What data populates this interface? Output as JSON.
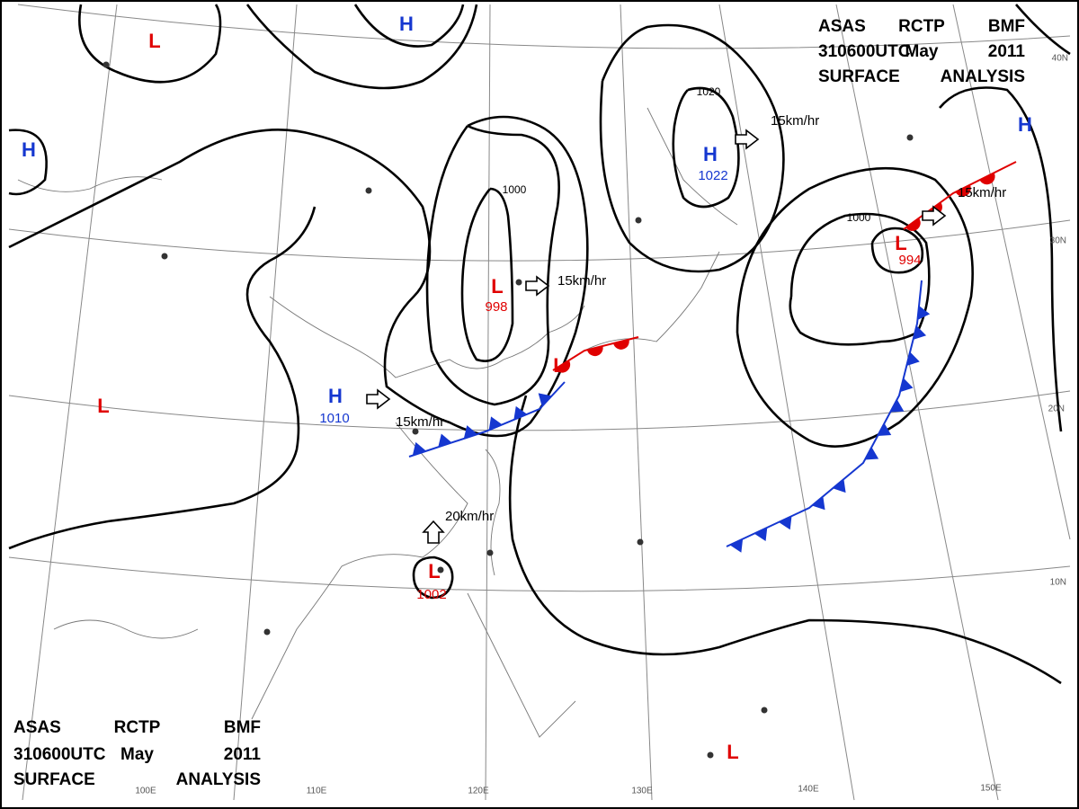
{
  "title_top": {
    "lines": [
      [
        "ASAS",
        "RCTP",
        "BMF"
      ],
      [
        "310600UTC",
        "May",
        "2011"
      ],
      [
        "SURFACE",
        "ANALYSIS"
      ]
    ]
  },
  "title_bottom": {
    "lines": [
      [
        "ASAS",
        "RCTP",
        "BMF"
      ],
      [
        "310600UTC",
        "May",
        "2011"
      ],
      [
        "SURFACE",
        "ANALYSIS"
      ]
    ]
  },
  "centers": [
    {
      "type": "L"
    },
    {
      "type": "H"
    },
    {
      "type": "H"
    },
    {
      "type": "L",
      "value": 998
    },
    {
      "type": "H",
      "value": 1010
    },
    {
      "type": "H",
      "value": 1022
    },
    {
      "type": "L",
      "value": 1002
    },
    {
      "type": "L",
      "value": 994
    },
    {
      "type": "L"
    },
    {
      "type": "H"
    },
    {
      "type": "L"
    },
    {
      "type": "L"
    }
  ],
  "motions": [
    "15km/hr",
    "15km/hr",
    "15km/hr",
    "15km/hr",
    "20km/hr"
  ],
  "isobar_labels": [
    "1020",
    "1000",
    "1000"
  ],
  "latitudes": [
    "40N",
    "30N",
    "20N",
    "10N"
  ],
  "longitudes": [
    "100E",
    "110E",
    "120E",
    "130E",
    "140E",
    "150E"
  ]
}
